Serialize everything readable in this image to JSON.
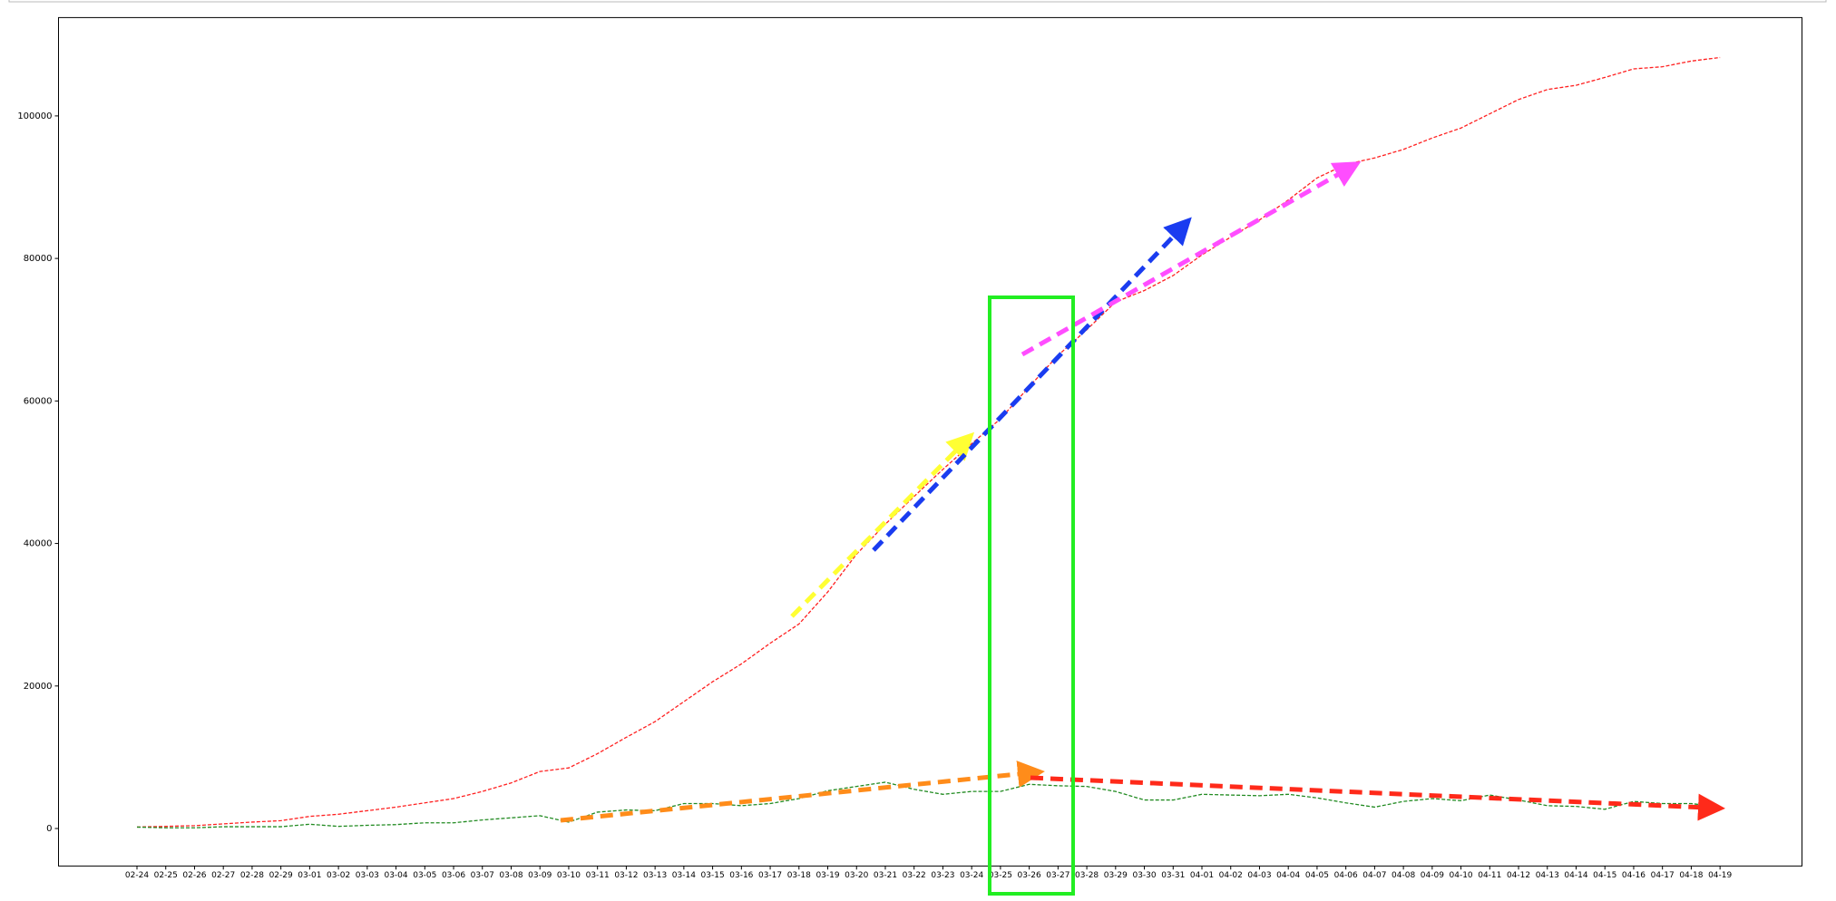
{
  "chart_data": {
    "type": "line",
    "categories": [
      "02-24",
      "02-25",
      "02-26",
      "02-27",
      "02-28",
      "02-29",
      "03-01",
      "03-02",
      "03-03",
      "03-04",
      "03-05",
      "03-06",
      "03-07",
      "03-08",
      "03-09",
      "03-10",
      "03-11",
      "03-12",
      "03-13",
      "03-14",
      "03-15",
      "03-16",
      "03-17",
      "03-18",
      "03-19",
      "03-20",
      "03-21",
      "03-22",
      "03-23",
      "03-24",
      "03-25",
      "03-26",
      "03-27",
      "03-28",
      "03-29",
      "03-30",
      "03-31",
      "04-01",
      "04-02",
      "04-03",
      "04-04",
      "04-05",
      "04-06",
      "04-07",
      "04-08",
      "04-09",
      "04-10",
      "04-11",
      "04-12",
      "04-13",
      "04-14",
      "04-15",
      "04-16",
      "04-17",
      "04-18",
      "04-19"
    ],
    "series": [
      {
        "color": "#ff2020",
        "values": [
          200,
          300,
          400,
          650,
          900,
          1100,
          1700,
          2000,
          2500,
          3000,
          3600,
          4200,
          5200,
          6400,
          8000,
          8500,
          10500,
          12800,
          15000,
          17800,
          20600,
          23100,
          26000,
          28700,
          33200,
          38500,
          42700,
          46600,
          50400,
          54000,
          57500,
          62000,
          66400,
          70000,
          73900,
          75500,
          77600,
          80500,
          83000,
          85400,
          88200,
          91300,
          93200,
          94100,
          95300,
          96900,
          98300,
          100300,
          102300,
          103700,
          104300,
          105400,
          106600,
          106900,
          107700,
          108200
        ]
      },
      {
        "color": "#228b22",
        "values": [
          200,
          100,
          100,
          250,
          250,
          250,
          600,
          300,
          450,
          550,
          800,
          800,
          1200,
          1500,
          1800,
          900,
          2300,
          2600,
          2500,
          3500,
          3500,
          3200,
          3500,
          4200,
          5300,
          5900,
          6500,
          5500,
          4800,
          5200,
          5200,
          6200,
          6000,
          5900,
          5200,
          4000,
          4000,
          4800,
          4700,
          4600,
          4800,
          4300,
          3600,
          3000,
          3800,
          4200,
          3900,
          4700,
          4000,
          3200,
          3100,
          2700,
          3800,
          3500,
          3500,
          3000
        ]
      }
    ],
    "ylim": [
      -5250,
      113800
    ],
    "yticks": [
      0,
      20000,
      40000,
      60000,
      80000,
      100000
    ]
  }
}
